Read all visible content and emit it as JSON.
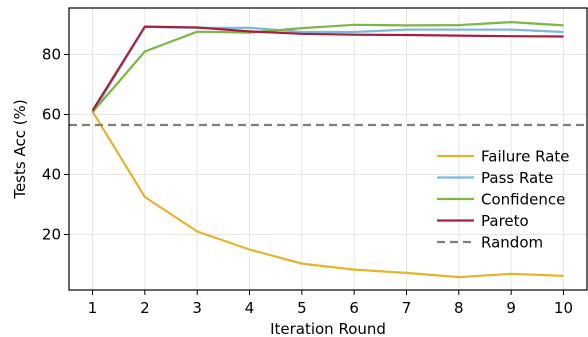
{
  "chart_data": {
    "type": "line",
    "xlabel": "Iteration Round",
    "ylabel": "Tests Acc (%)",
    "x": [
      1,
      2,
      3,
      4,
      5,
      6,
      7,
      8,
      9,
      10
    ],
    "x_ticks": [
      "1",
      "2",
      "3",
      "4",
      "5",
      "6",
      "7",
      "8",
      "9",
      "10"
    ],
    "xlim": [
      0.55,
      10.45
    ],
    "y_ticks": [
      "20",
      "40",
      "60",
      "80"
    ],
    "ylim": [
      1.5,
      95.5
    ],
    "grid": true,
    "legend_position": "center-right",
    "series": [
      {
        "name": "Failure Rate",
        "color": "#e3b52a",
        "style": "solid",
        "values": [
          61,
          32.5,
          21,
          15,
          10.3,
          8.3,
          7.2,
          5.8,
          6.9,
          6.2
        ]
      },
      {
        "name": "Pass Rate",
        "color": "#7db8dc",
        "style": "solid",
        "values": [
          60.5,
          89.2,
          88.9,
          88.9,
          87.5,
          87.5,
          88.3,
          88.3,
          88.3,
          87.5
        ]
      },
      {
        "name": "Confidence",
        "color": "#7db546",
        "style": "solid",
        "values": [
          60.8,
          81,
          87.6,
          87.3,
          88.8,
          89.9,
          89.7,
          89.8,
          90.8,
          89.7
        ]
      },
      {
        "name": "Pareto",
        "color": "#a5203c",
        "style": "solid",
        "values": [
          61.3,
          89.3,
          89,
          87.7,
          86.9,
          86.6,
          86.5,
          86.3,
          86.1,
          86
        ]
      },
      {
        "name": "Random",
        "color": "#7f7f7f",
        "style": "dashed",
        "constant": 56.5
      }
    ]
  }
}
